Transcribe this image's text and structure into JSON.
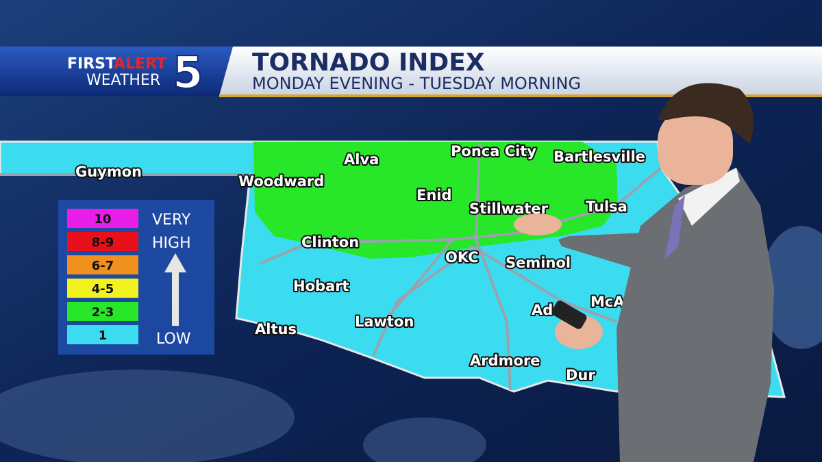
{
  "header": {
    "logo": {
      "first": "FIRST",
      "alert": "ALERT",
      "weather": "WEATHER",
      "channel": "5"
    },
    "title": "TORNADO INDEX",
    "subtitle": "MONDAY EVENING - TUESDAY MORNING"
  },
  "legend": {
    "items": [
      {
        "label": "10",
        "color": "#e81ee8"
      },
      {
        "label": "8-9",
        "color": "#e8101a"
      },
      {
        "label": "6-7",
        "color": "#f0901e"
      },
      {
        "label": "4-5",
        "color": "#f2f21e"
      },
      {
        "label": "2-3",
        "color": "#28e628"
      },
      {
        "label": "1",
        "color": "#3cdcf0"
      }
    ],
    "high": [
      "VERY",
      "HIGH"
    ],
    "low": "LOW"
  },
  "cities": [
    "Guymon",
    "Woodward",
    "Alva",
    "Ponca City",
    "Bartlesville",
    "Enid",
    "Stillwater",
    "Tulsa",
    "Clinton",
    "OKC",
    "Seminol",
    "Hobart",
    "McA",
    "Altus",
    "Lawton",
    "Ad",
    "Ardmore",
    "Dur"
  ]
}
